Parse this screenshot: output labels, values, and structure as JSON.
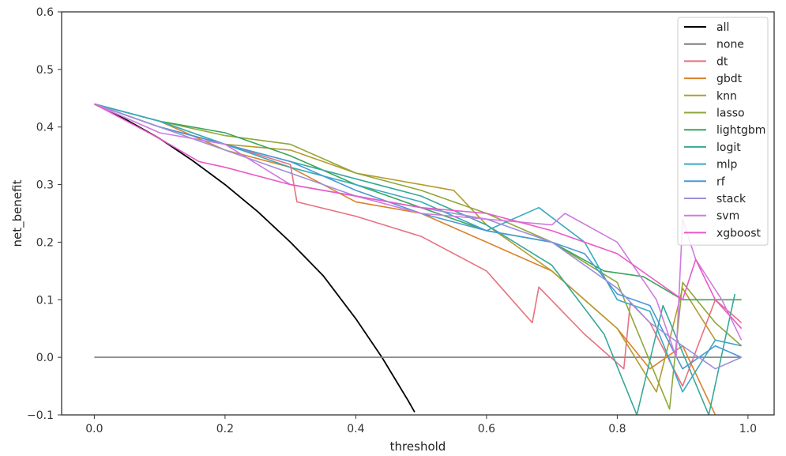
{
  "chart_data": {
    "type": "line",
    "title": "",
    "xlabel": "threshold",
    "ylabel": "net_benefit",
    "xlim": [
      -0.05,
      1.04
    ],
    "ylim": [
      -0.1,
      0.6
    ],
    "xticks": [
      0.0,
      0.2,
      0.4,
      0.6,
      0.8,
      1.0
    ],
    "xtick_labels": [
      "0.0",
      "0.2",
      "0.4",
      "0.6",
      "0.8",
      "1.0"
    ],
    "yticks": [
      -0.1,
      0.0,
      0.1,
      0.2,
      0.3,
      0.4,
      0.5,
      0.6
    ],
    "ytick_labels": [
      "−0.1",
      "0.0",
      "0.1",
      "0.2",
      "0.3",
      "0.4",
      "0.5",
      "0.6"
    ],
    "grid": false,
    "legend_position": "top-right",
    "series": [
      {
        "name": "all",
        "color": "#000000",
        "x": [
          0.0,
          0.05,
          0.1,
          0.15,
          0.2,
          0.25,
          0.3,
          0.35,
          0.4,
          0.44,
          0.48,
          0.49
        ],
        "y": [
          0.44,
          0.412,
          0.38,
          0.342,
          0.3,
          0.253,
          0.2,
          0.142,
          0.067,
          0.0,
          -0.075,
          -0.095
        ]
      },
      {
        "name": "none",
        "color": "#7f7f7f",
        "x": [
          0.0,
          0.99
        ],
        "y": [
          0.0,
          0.0
        ]
      },
      {
        "name": "dt",
        "color": "#e8707f",
        "x": [
          0.0,
          0.1,
          0.2,
          0.3,
          0.31,
          0.4,
          0.5,
          0.6,
          0.67,
          0.68,
          0.75,
          0.81,
          0.82,
          0.85,
          0.9,
          0.95,
          0.99
        ],
        "y": [
          0.44,
          0.4,
          0.37,
          0.335,
          0.27,
          0.245,
          0.21,
          0.15,
          0.06,
          0.122,
          0.04,
          -0.02,
          0.095,
          0.06,
          -0.05,
          0.1,
          0.06
        ]
      },
      {
        "name": "gbdt",
        "color": "#d9822b",
        "x": [
          0.0,
          0.1,
          0.2,
          0.3,
          0.4,
          0.5,
          0.6,
          0.7,
          0.8,
          0.85,
          0.9,
          0.95
        ],
        "y": [
          0.44,
          0.41,
          0.36,
          0.33,
          0.27,
          0.25,
          0.2,
          0.15,
          0.05,
          -0.02,
          0.02,
          -0.1
        ]
      },
      {
        "name": "knn",
        "color": "#b79a2e",
        "x": [
          0.0,
          0.1,
          0.2,
          0.3,
          0.35,
          0.4,
          0.5,
          0.55,
          0.6,
          0.7,
          0.8,
          0.86,
          0.9,
          0.95
        ],
        "y": [
          0.44,
          0.4,
          0.37,
          0.36,
          0.34,
          0.32,
          0.3,
          0.29,
          0.23,
          0.15,
          0.05,
          -0.06,
          0.12,
          0.03
        ]
      },
      {
        "name": "lasso",
        "color": "#8fa83a",
        "x": [
          0.0,
          0.1,
          0.2,
          0.3,
          0.4,
          0.5,
          0.6,
          0.7,
          0.8,
          0.88,
          0.9,
          0.95,
          0.99
        ],
        "y": [
          0.44,
          0.41,
          0.385,
          0.37,
          0.32,
          0.29,
          0.25,
          0.2,
          0.13,
          -0.09,
          0.13,
          0.06,
          0.02
        ]
      },
      {
        "name": "lightgbm",
        "color": "#3aa55a",
        "x": [
          0.0,
          0.1,
          0.2,
          0.3,
          0.4,
          0.5,
          0.6,
          0.7,
          0.78,
          0.84,
          0.9,
          0.95,
          0.99
        ],
        "y": [
          0.44,
          0.41,
          0.39,
          0.35,
          0.3,
          0.26,
          0.22,
          0.2,
          0.15,
          0.14,
          0.1,
          0.1,
          0.1
        ]
      },
      {
        "name": "logit",
        "color": "#36a898",
        "x": [
          0.0,
          0.1,
          0.2,
          0.3,
          0.4,
          0.5,
          0.6,
          0.7,
          0.78,
          0.83,
          0.87,
          0.94,
          0.98
        ],
        "y": [
          0.44,
          0.41,
          0.37,
          0.34,
          0.31,
          0.28,
          0.23,
          0.16,
          0.04,
          -0.1,
          0.09,
          -0.1,
          0.11
        ]
      },
      {
        "name": "mlp",
        "color": "#3aa9c0",
        "x": [
          0.0,
          0.1,
          0.2,
          0.3,
          0.4,
          0.5,
          0.6,
          0.68,
          0.75,
          0.8,
          0.85,
          0.9,
          0.95,
          0.99
        ],
        "y": [
          0.44,
          0.41,
          0.37,
          0.33,
          0.3,
          0.27,
          0.22,
          0.26,
          0.2,
          0.1,
          0.08,
          -0.06,
          0.03,
          0.02
        ]
      },
      {
        "name": "rf",
        "color": "#4b98d6",
        "x": [
          0.0,
          0.1,
          0.2,
          0.3,
          0.4,
          0.5,
          0.6,
          0.7,
          0.75,
          0.8,
          0.85,
          0.9,
          0.95,
          0.99
        ],
        "y": [
          0.44,
          0.4,
          0.37,
          0.34,
          0.29,
          0.25,
          0.22,
          0.2,
          0.18,
          0.11,
          0.09,
          -0.02,
          0.02,
          0.0
        ]
      },
      {
        "name": "stack",
        "color": "#9d8fdb",
        "x": [
          0.0,
          0.1,
          0.2,
          0.3,
          0.4,
          0.5,
          0.6,
          0.7,
          0.8,
          0.85,
          0.9,
          0.95,
          0.99
        ],
        "y": [
          0.44,
          0.4,
          0.36,
          0.32,
          0.28,
          0.26,
          0.24,
          0.2,
          0.12,
          0.06,
          0.02,
          -0.02,
          0.0
        ]
      },
      {
        "name": "svm",
        "color": "#d07ae0",
        "x": [
          0.0,
          0.1,
          0.2,
          0.3,
          0.4,
          0.5,
          0.6,
          0.7,
          0.72,
          0.8,
          0.86,
          0.89,
          0.9,
          0.92,
          0.96,
          0.99
        ],
        "y": [
          0.44,
          0.39,
          0.37,
          0.3,
          0.28,
          0.25,
          0.24,
          0.23,
          0.25,
          0.2,
          0.1,
          0.0,
          0.24,
          0.17,
          0.1,
          0.03
        ]
      },
      {
        "name": "xgboost",
        "color": "#e85ac6",
        "x": [
          0.0,
          0.1,
          0.16,
          0.2,
          0.3,
          0.4,
          0.5,
          0.6,
          0.7,
          0.8,
          0.85,
          0.9,
          0.92,
          0.95,
          0.99
        ],
        "y": [
          0.44,
          0.38,
          0.34,
          0.33,
          0.3,
          0.28,
          0.26,
          0.25,
          0.22,
          0.18,
          0.14,
          0.1,
          0.17,
          0.1,
          0.05
        ]
      }
    ]
  }
}
